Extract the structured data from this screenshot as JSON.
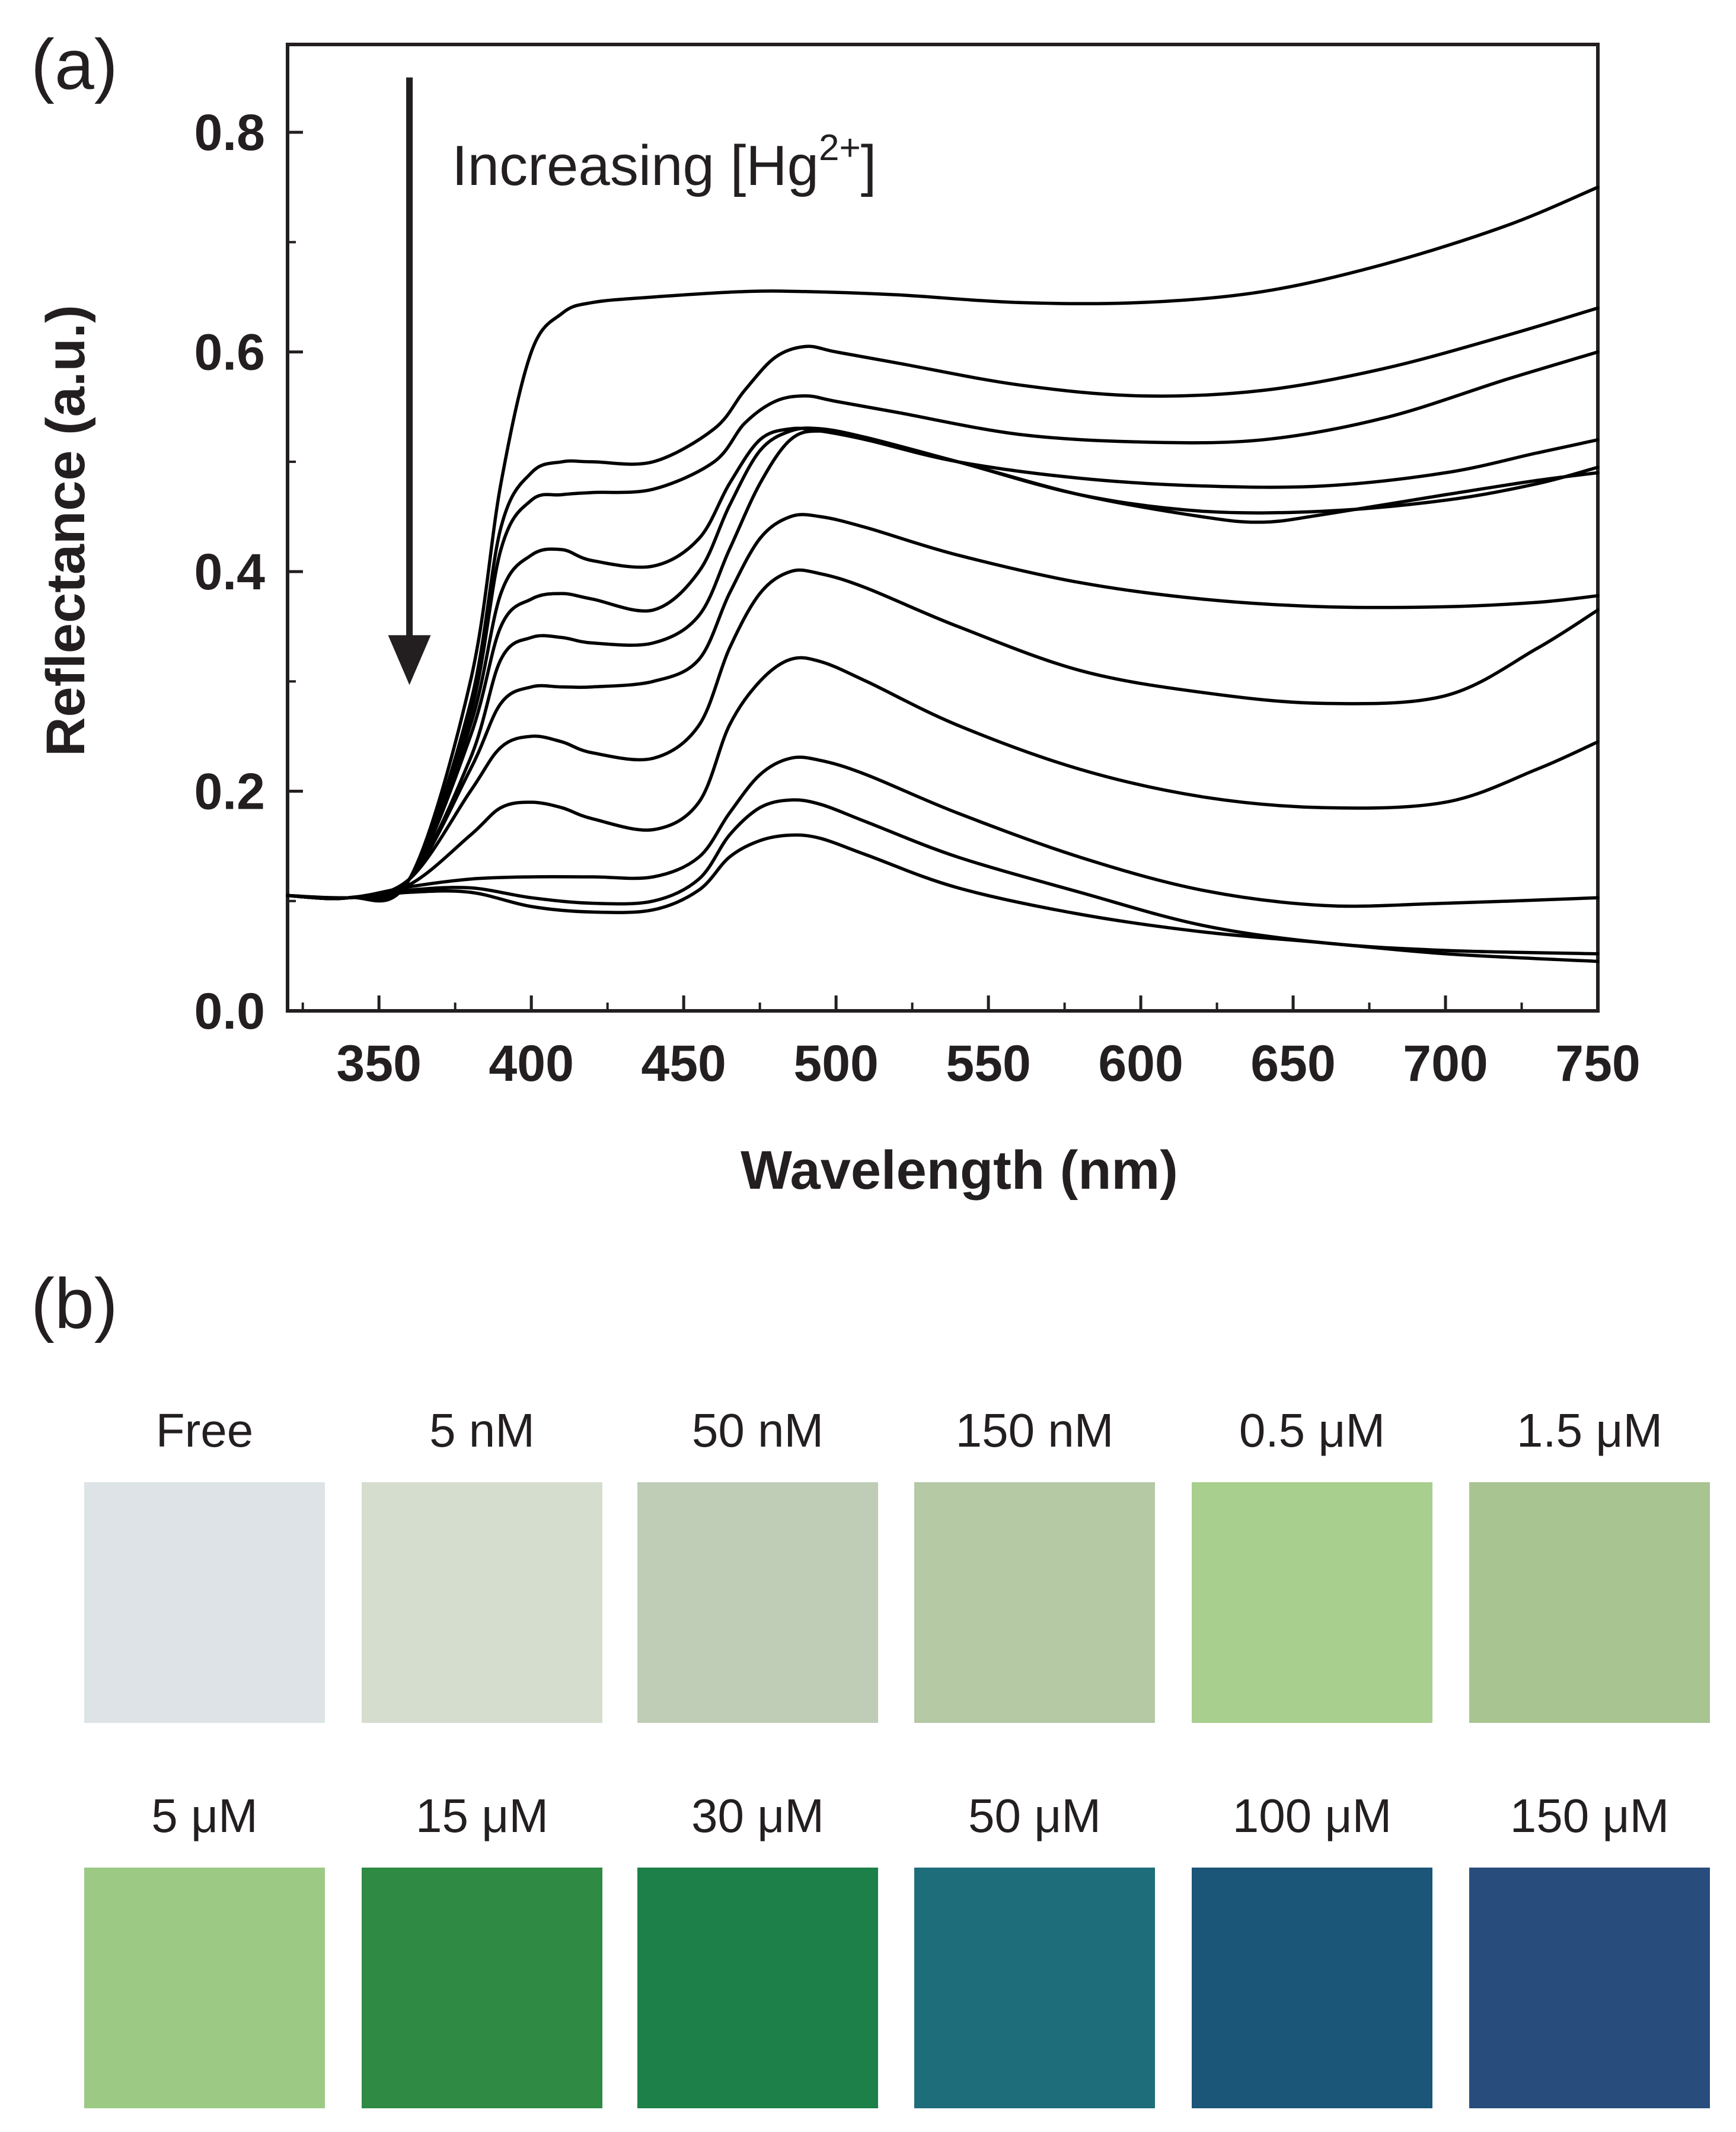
{
  "figure": {
    "panel_a_label": "(a)",
    "panel_b_label": "(b)"
  },
  "chart_data": {
    "type": "line",
    "title": "",
    "xlabel": "Wavelength (nm)",
    "ylabel": "Reflectance (a.u.)",
    "xlim": [
      320,
      750
    ],
    "ylim": [
      0.0,
      0.88
    ],
    "xticks": [
      350,
      400,
      450,
      500,
      550,
      600,
      650,
      700,
      750
    ],
    "xtick_labels": [
      "350",
      "400",
      "450",
      "500",
      "550",
      "600",
      "650",
      "700",
      "750"
    ],
    "yticks": [
      0.0,
      0.2,
      0.4,
      0.6,
      0.8
    ],
    "ytick_labels": [
      "0.0",
      "0.2",
      "0.4",
      "0.6",
      "0.8"
    ],
    "grid": false,
    "annotation": {
      "text_main": "Increasing [Hg",
      "text_sup": "2+",
      "text_end": "]",
      "arrow_x": 360,
      "arrow_from_y": 0.85,
      "arrow_to_y": 0.3
    },
    "line_color": "#000000",
    "series": [
      {
        "name": "Free",
        "x": [
          320,
          340,
          360,
          380,
          390,
          400,
          410,
          420,
          440,
          470,
          490,
          520,
          560,
          600,
          640,
          680,
          720,
          750
        ],
        "y": [
          0.105,
          0.103,
          0.12,
          0.3,
          0.48,
          0.6,
          0.635,
          0.645,
          0.65,
          0.655,
          0.655,
          0.652,
          0.645,
          0.645,
          0.655,
          0.68,
          0.715,
          0.75
        ]
      },
      {
        "name": "5 nM",
        "x": [
          320,
          340,
          360,
          380,
          390,
          400,
          410,
          420,
          440,
          460,
          470,
          480,
          490,
          500,
          520,
          560,
          600,
          640,
          680,
          720,
          750
        ],
        "y": [
          0.105,
          0.103,
          0.12,
          0.28,
          0.44,
          0.49,
          0.5,
          0.5,
          0.5,
          0.53,
          0.565,
          0.595,
          0.605,
          0.6,
          0.59,
          0.57,
          0.56,
          0.565,
          0.585,
          0.615,
          0.64
        ]
      },
      {
        "name": "50 nM",
        "x": [
          320,
          340,
          360,
          380,
          390,
          400,
          410,
          420,
          440,
          460,
          470,
          480,
          490,
          500,
          520,
          560,
          600,
          640,
          680,
          720,
          750
        ],
        "y": [
          0.105,
          0.103,
          0.12,
          0.27,
          0.42,
          0.465,
          0.47,
          0.472,
          0.475,
          0.5,
          0.535,
          0.555,
          0.56,
          0.555,
          0.545,
          0.525,
          0.518,
          0.52,
          0.54,
          0.575,
          0.6
        ]
      },
      {
        "name": "150 nM",
        "x": [
          320,
          340,
          360,
          380,
          390,
          400,
          410,
          420,
          440,
          455,
          465,
          475,
          485,
          495,
          510,
          540,
          580,
          620,
          660,
          700,
          730,
          750
        ],
        "y": [
          0.105,
          0.103,
          0.12,
          0.26,
          0.38,
          0.415,
          0.42,
          0.41,
          0.405,
          0.43,
          0.48,
          0.52,
          0.53,
          0.528,
          0.52,
          0.5,
          0.485,
          0.478,
          0.478,
          0.49,
          0.508,
          0.52
        ]
      },
      {
        "name": "0.5 μM",
        "x": [
          320,
          340,
          360,
          380,
          390,
          400,
          410,
          420,
          440,
          455,
          465,
          475,
          485,
          495,
          510,
          540,
          580,
          620,
          660,
          700,
          730,
          750
        ],
        "y": [
          0.105,
          0.103,
          0.12,
          0.25,
          0.35,
          0.375,
          0.38,
          0.375,
          0.365,
          0.4,
          0.46,
          0.51,
          0.528,
          0.53,
          0.522,
          0.5,
          0.47,
          0.455,
          0.455,
          0.465,
          0.48,
          0.495
        ]
      },
      {
        "name": "1.5 μM",
        "x": [
          320,
          340,
          360,
          380,
          390,
          400,
          410,
          420,
          440,
          455,
          465,
          475,
          485,
          495,
          510,
          540,
          580,
          620,
          640,
          660,
          700,
          730,
          750
        ],
        "y": [
          0.105,
          0.103,
          0.12,
          0.23,
          0.32,
          0.34,
          0.34,
          0.335,
          0.335,
          0.36,
          0.42,
          0.48,
          0.52,
          0.528,
          0.52,
          0.5,
          0.47,
          0.45,
          0.445,
          0.452,
          0.47,
          0.483,
          0.49
        ]
      },
      {
        "name": "5 μM",
        "x": [
          320,
          340,
          360,
          380,
          390,
          400,
          410,
          420,
          440,
          455,
          465,
          475,
          485,
          495,
          510,
          540,
          580,
          620,
          660,
          700,
          730,
          750
        ],
        "y": [
          0.105,
          0.103,
          0.12,
          0.22,
          0.28,
          0.295,
          0.295,
          0.295,
          0.3,
          0.32,
          0.38,
          0.43,
          0.45,
          0.45,
          0.44,
          0.415,
          0.39,
          0.375,
          0.368,
          0.368,
          0.372,
          0.378
        ]
      },
      {
        "name": "15 μM",
        "x": [
          320,
          340,
          360,
          380,
          390,
          400,
          410,
          420,
          440,
          455,
          465,
          475,
          485,
          495,
          510,
          540,
          580,
          620,
          660,
          700,
          730,
          750
        ],
        "y": [
          0.105,
          0.103,
          0.12,
          0.2,
          0.24,
          0.25,
          0.245,
          0.235,
          0.23,
          0.26,
          0.33,
          0.38,
          0.4,
          0.398,
          0.385,
          0.35,
          0.31,
          0.29,
          0.28,
          0.287,
          0.33,
          0.365
        ]
      },
      {
        "name": "30 μM",
        "x": [
          320,
          340,
          360,
          380,
          390,
          400,
          410,
          420,
          440,
          455,
          465,
          475,
          485,
          495,
          510,
          540,
          580,
          620,
          660,
          700,
          730,
          750
        ],
        "y": [
          0.105,
          0.103,
          0.115,
          0.16,
          0.185,
          0.19,
          0.185,
          0.175,
          0.165,
          0.19,
          0.26,
          0.3,
          0.32,
          0.318,
          0.3,
          0.26,
          0.22,
          0.195,
          0.185,
          0.19,
          0.22,
          0.245
        ]
      },
      {
        "name": "50 μM",
        "x": [
          320,
          340,
          360,
          380,
          400,
          420,
          440,
          455,
          465,
          475,
          485,
          495,
          510,
          540,
          580,
          620,
          660,
          700,
          750
        ],
        "y": [
          0.105,
          0.103,
          0.113,
          0.12,
          0.122,
          0.122,
          0.122,
          0.14,
          0.18,
          0.215,
          0.23,
          0.228,
          0.215,
          0.18,
          0.14,
          0.11,
          0.096,
          0.098,
          0.103
        ]
      },
      {
        "name": "100 μM",
        "x": [
          320,
          340,
          360,
          380,
          400,
          420,
          440,
          455,
          465,
          475,
          485,
          495,
          510,
          540,
          580,
          620,
          660,
          700,
          750
        ],
        "y": [
          0.105,
          0.103,
          0.11,
          0.112,
          0.103,
          0.098,
          0.1,
          0.12,
          0.16,
          0.185,
          0.192,
          0.188,
          0.172,
          0.14,
          0.108,
          0.078,
          0.062,
          0.055,
          0.052
        ]
      },
      {
        "name": "150 μM",
        "x": [
          320,
          340,
          360,
          380,
          400,
          420,
          440,
          455,
          465,
          475,
          485,
          495,
          510,
          540,
          580,
          620,
          660,
          700,
          750
        ],
        "y": [
          0.105,
          0.103,
          0.108,
          0.108,
          0.095,
          0.09,
          0.092,
          0.11,
          0.14,
          0.155,
          0.16,
          0.157,
          0.142,
          0.112,
          0.088,
          0.072,
          0.062,
          0.052,
          0.045
        ]
      }
    ]
  },
  "swatches": {
    "row1": [
      {
        "label": "Free",
        "color": "#dde3e6"
      },
      {
        "label": "5 nM",
        "color": "#d5ddcf"
      },
      {
        "label": "50 nM",
        "color": "#bfcdb6"
      },
      {
        "label": "150 nM",
        "color": "#b4c9a4"
      },
      {
        "label": "0.5 μM",
        "color": "#a8cf8e"
      },
      {
        "label": "1.5 μM",
        "color": "#a8c491"
      }
    ],
    "row2": [
      {
        "label": "5 μM",
        "color": "#9cca84"
      },
      {
        "label": "15 μM",
        "color": "#2f8a44"
      },
      {
        "label": "30 μM",
        "color": "#1d8048"
      },
      {
        "label": "50 μM",
        "color": "#1d6e7a"
      },
      {
        "label": "100 μM",
        "color": "#1b5577"
      },
      {
        "label": "150 μM",
        "color": "#284d7c"
      }
    ]
  }
}
